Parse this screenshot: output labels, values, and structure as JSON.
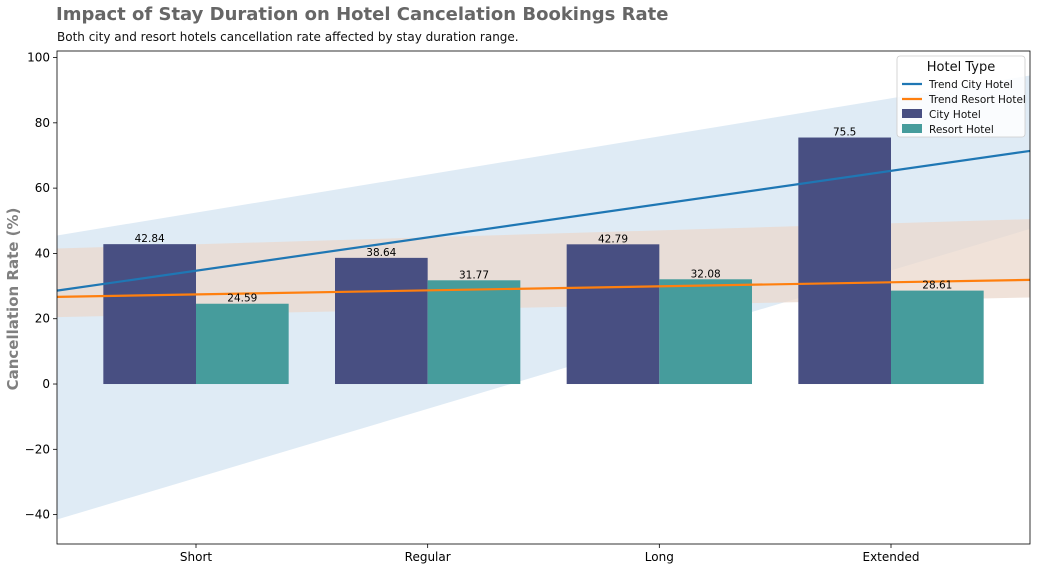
{
  "chart_data": {
    "type": "bar",
    "title": "Impact of Stay Duration on Hotel Cancelation Bookings Rate",
    "subtitle": "Both city and resort hotels cancellation rate affected by stay duration range.",
    "xlabel": "",
    "ylabel": "Cancellation Rate (%)",
    "ylim": [
      -49,
      102
    ],
    "yticks": [
      -40,
      -20,
      0,
      20,
      40,
      60,
      80,
      100
    ],
    "categories": [
      "Short",
      "Regular",
      "Long",
      "Extended"
    ],
    "series": [
      {
        "name": "City Hotel",
        "color": "#484f82",
        "values": [
          42.84,
          38.64,
          42.79,
          75.5
        ]
      },
      {
        "name": "Resort Hotel",
        "color": "#469c9c",
        "values": [
          24.59,
          31.77,
          32.08,
          28.61
        ]
      }
    ],
    "trend_lines": [
      {
        "name": "Trend City Hotel",
        "color": "#1f77b4",
        "band_color": "#dce9f4",
        "x": [
          -0.6,
          3.6
        ],
        "y": [
          28.6,
          71.4
        ],
        "band_upper": [
          45.5,
          94.5
        ],
        "band_lower": [
          -41.5,
          47.5
        ]
      },
      {
        "name": "Trend Resort Hotel",
        "color": "#ff7f0e",
        "band_color": "#ebd8cc",
        "x": [
          -0.6,
          3.6
        ],
        "y": [
          26.7,
          31.9
        ],
        "band_upper": [
          41.5,
          50.5
        ],
        "band_lower": [
          20.5,
          26.5
        ]
      }
    ],
    "legend": {
      "title": "Hotel Type",
      "placement": "top-right",
      "entries": [
        "Trend City Hotel",
        "Trend Resort Hotel",
        "City Hotel",
        "Resort Hotel"
      ]
    },
    "grid": false
  }
}
